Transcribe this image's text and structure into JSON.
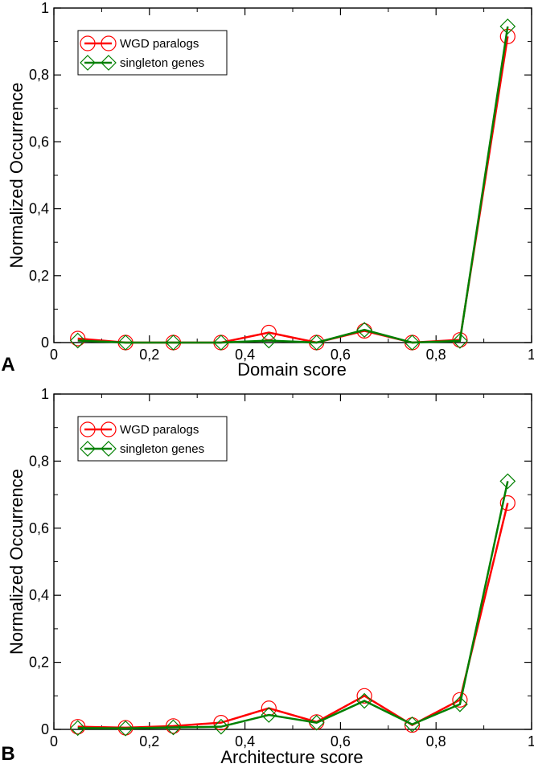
{
  "panels": [
    {
      "panel_label": "A",
      "chart_data": {
        "type": "line",
        "xlabel": "Domain score",
        "ylabel": "Normalized Occurrence",
        "xlim": [
          0,
          1
        ],
        "ylim": [
          0,
          1
        ],
        "xticks": [
          "0",
          "0,2",
          "0,4",
          "0,6",
          "0,8",
          "1"
        ],
        "yticks": [
          "0",
          "0,2",
          "0,4",
          "0,6",
          "0,8",
          "1"
        ],
        "grid": false,
        "legend_position": "top-left",
        "x": [
          0.05,
          0.15,
          0.25,
          0.35,
          0.45,
          0.55,
          0.65,
          0.75,
          0.85,
          0.95
        ],
        "series": [
          {
            "name": "WGD paralogs",
            "color": "#ff0000",
            "marker": "circle",
            "values": [
              0.012,
              0.0,
              0.0,
              0.0,
              0.03,
              0.0,
              0.035,
              0.0,
              0.008,
              0.915
            ]
          },
          {
            "name": "singleton genes",
            "color": "#008000",
            "marker": "diamond",
            "values": [
              0.006,
              0.0,
              0.0,
              0.0,
              0.006,
              0.0,
              0.038,
              0.0,
              0.005,
              0.945
            ]
          }
        ]
      }
    },
    {
      "panel_label": "B",
      "chart_data": {
        "type": "line",
        "xlabel": "Architecture score",
        "ylabel": "Normalized Occurrence",
        "xlim": [
          0,
          1
        ],
        "ylim": [
          0,
          1
        ],
        "xticks": [
          "0",
          "0,2",
          "0,4",
          "0,6",
          "0,8",
          "1"
        ],
        "yticks": [
          "0",
          "0,2",
          "0,4",
          "0,6",
          "0,8",
          "1"
        ],
        "grid": false,
        "legend_position": "top-left",
        "x": [
          0.05,
          0.15,
          0.25,
          0.35,
          0.45,
          0.55,
          0.65,
          0.75,
          0.85,
          0.95
        ],
        "series": [
          {
            "name": "WGD paralogs",
            "color": "#ff0000",
            "marker": "circle",
            "values": [
              0.008,
              0.005,
              0.01,
              0.02,
              0.063,
              0.022,
              0.1,
              0.013,
              0.088,
              0.675
            ]
          },
          {
            "name": "singleton genes",
            "color": "#008000",
            "marker": "diamond",
            "values": [
              0.004,
              0.003,
              0.006,
              0.008,
              0.043,
              0.02,
              0.085,
              0.015,
              0.075,
              0.74
            ]
          }
        ]
      }
    }
  ]
}
